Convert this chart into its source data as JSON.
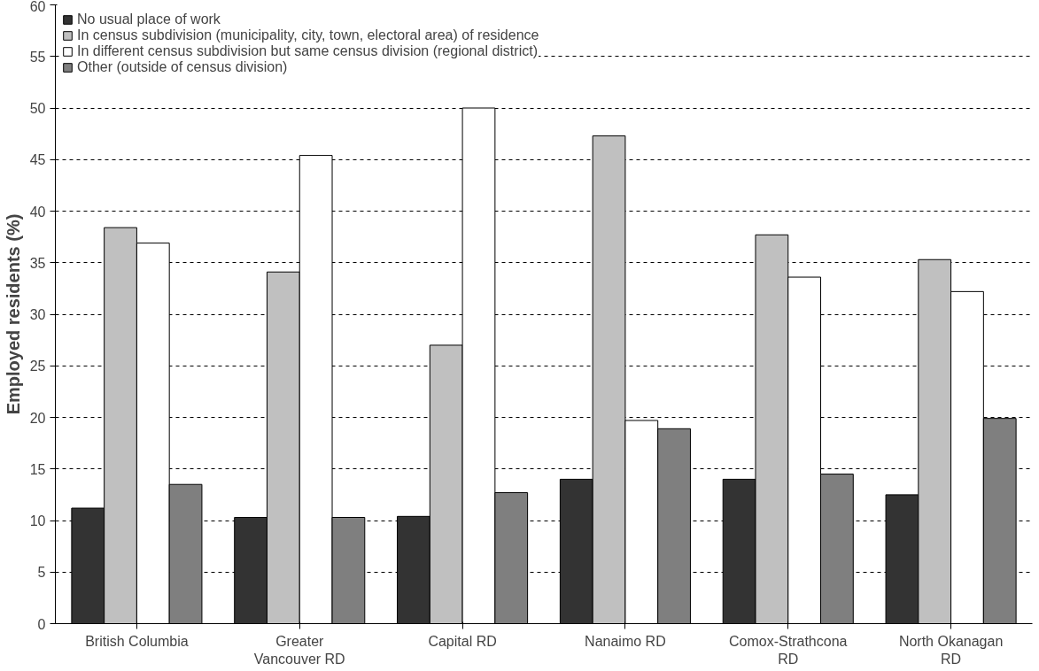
{
  "chart_data": {
    "type": "bar",
    "ylabel": "Employed residents (%)",
    "categories": [
      "British Columbia",
      "Greater Vancouver RD",
      "Capital RD",
      "Nanaimo RD",
      "Comox-Strathcona RD",
      "North Okanagan RD"
    ],
    "series": [
      {
        "name": "No usual place of work",
        "color": "#333333",
        "values": [
          11.2,
          10.3,
          10.4,
          14.0,
          14.0,
          12.5
        ]
      },
      {
        "name": "In census subdivision (municipality, city, town, electoral area) of residence",
        "color": "#c0c0c0",
        "values": [
          38.4,
          34.1,
          27.0,
          47.3,
          37.7,
          35.3
        ]
      },
      {
        "name": "In different census subdivision but same census division (regional district)",
        "color": "#ffffff",
        "values": [
          36.9,
          45.4,
          50.0,
          19.7,
          33.6,
          32.2
        ]
      },
      {
        "name": "Other (outside of census division)",
        "color": "#7f7f7f",
        "values": [
          13.5,
          10.3,
          12.7,
          18.9,
          14.5,
          19.9
        ]
      }
    ],
    "ylim": [
      0,
      60
    ],
    "yticks": [
      0,
      5,
      10,
      15,
      20,
      25,
      30,
      35,
      40,
      45,
      50,
      55,
      60
    ],
    "grid": "y",
    "legend": "top left"
  }
}
